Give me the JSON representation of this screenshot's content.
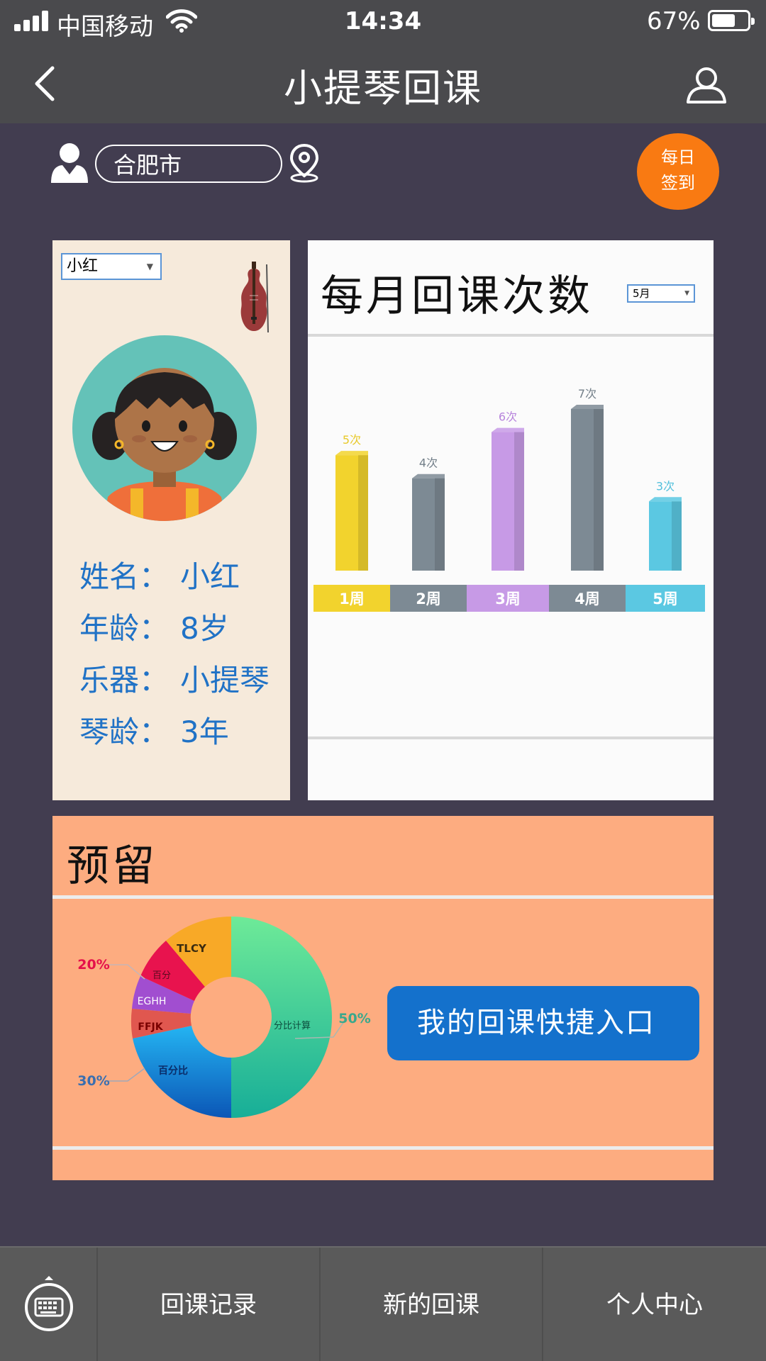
{
  "status_bar": {
    "carrier": "中国移动",
    "time": "14:34",
    "battery": "67%",
    "battery_level": 0.67
  },
  "nav": {
    "title": "小提琴回课"
  },
  "location": {
    "city": "合肥市"
  },
  "checkin": {
    "line1": "每日",
    "line2": "签到"
  },
  "student": {
    "selected": "小红",
    "fields": [
      {
        "label": "姓名：",
        "value": "小红"
      },
      {
        "label": "年龄：",
        "value": "8岁"
      },
      {
        "label": "乐器：",
        "value": "小提琴"
      },
      {
        "label": "琴龄：",
        "value": "3年"
      }
    ]
  },
  "chart_card": {
    "title": "每月回课次数",
    "month": "5月"
  },
  "chart_data": {
    "type": "bar",
    "categories": [
      "1周",
      "2周",
      "3周",
      "4周",
      "5周"
    ],
    "values": [
      5,
      4,
      6,
      7,
      3
    ],
    "data_labels": [
      "5次",
      "4次",
      "6次",
      "7次",
      "3次"
    ],
    "colors": [
      "#f2d32d",
      "#7d8a94",
      "#c79ae6",
      "#7d8a94",
      "#5bc8e2"
    ],
    "label_colors": [
      "#e8c92a",
      "#737f89",
      "#b784dc",
      "#737f89",
      "#53c0dc"
    ],
    "ylim": [
      0,
      7
    ]
  },
  "reserve": {
    "title": "预留",
    "quick_entry": "我的回课快捷入口",
    "donut_labels": {
      "tlcy": "TLCY",
      "baifen": "百分",
      "eghh": "EGHH",
      "ffjk": "FFJK",
      "baifenbi": "百分比",
      "fenbijisuan": "分比计算",
      "p20": "20%",
      "p30": "30%",
      "p50": "50%"
    }
  },
  "tabs": [
    "回课记录",
    "新的回课",
    "个人中心"
  ]
}
